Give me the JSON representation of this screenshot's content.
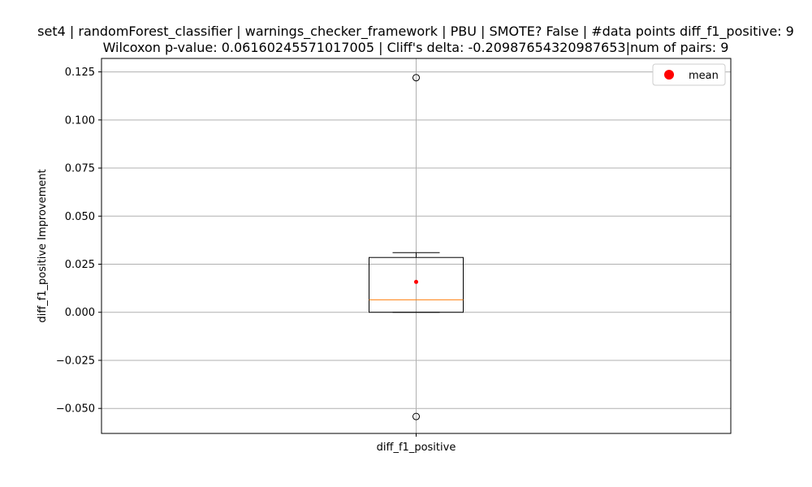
{
  "chart_data": {
    "type": "box",
    "title_line1": "set4 | randomForest_classifier | warnings_checker_framework | PBU | SMOTE? False | #data points diff_f1_positive: 9",
    "title_line2": "Wilcoxon p-value: 0.06160245571017005 | Cliff's delta: -0.20987654320987653|num of pairs: 9",
    "xlabel": "",
    "ylabel": "diff_f1_positive Improvement",
    "categories": [
      "diff_f1_positive"
    ],
    "ylim": [
      -0.063,
      0.132
    ],
    "yticks": [
      -0.05,
      -0.025,
      0.0,
      0.025,
      0.05,
      0.075,
      0.1,
      0.125
    ],
    "ytick_labels": [
      "−0.050",
      "−0.025",
      "0.000",
      "0.025",
      "0.050",
      "0.075",
      "0.100",
      "0.125"
    ],
    "grid": true,
    "legend": {
      "placement": "top-right",
      "entries": [
        {
          "label": "mean",
          "color": "#ff0000"
        }
      ]
    },
    "boxes": [
      {
        "category": "diff_f1_positive",
        "whisker_low": 0.0,
        "q1": 0.0,
        "median": 0.0065,
        "q3": 0.0285,
        "whisker_high": 0.031,
        "mean": 0.0158,
        "outliers": [
          0.122,
          -0.0542
        ]
      }
    ],
    "colors": {
      "box": "#000000",
      "median": "#ff7f0e",
      "mean": "#ff0000",
      "grid": "#b0b0b0"
    }
  }
}
